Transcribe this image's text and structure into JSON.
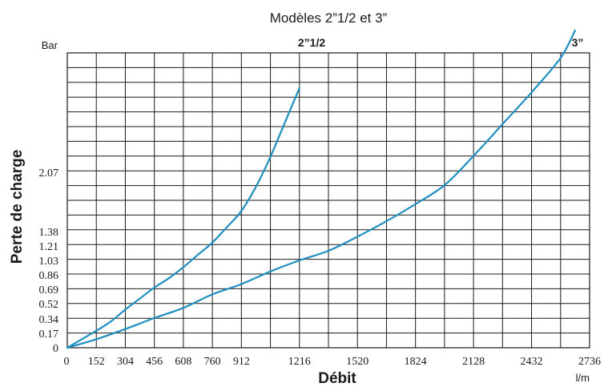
{
  "chart_data": {
    "type": "line",
    "title": "Modèles 2”1/2 et 3”",
    "ylabel": "Perte de charge",
    "xlabel": "Débit",
    "x_unit": "l/m",
    "y_unit": "Bar",
    "xlim": [
      0,
      2736
    ],
    "x_ticks": [
      "0",
      "152",
      "304",
      "456",
      "608",
      "760",
      "912",
      "1216",
      "1520",
      "1824",
      "2128",
      "2432",
      "2736"
    ],
    "y_ticks": [
      "0",
      "0.17",
      "0.34",
      "0.52",
      "0.69",
      "0.86",
      "1.03",
      "1.21",
      "1.38",
      "2.07"
    ],
    "grid": true,
    "series": [
      {
        "name": "2”1/2",
        "color": "#1f8fc0",
        "points": [
          [
            0,
            0
          ],
          [
            76,
            0.1
          ],
          [
            152,
            0.2
          ],
          [
            228,
            0.31
          ],
          [
            304,
            0.45
          ],
          [
            380,
            0.58
          ],
          [
            456,
            0.71
          ],
          [
            532,
            0.82
          ],
          [
            608,
            0.95
          ],
          [
            684,
            1.1
          ],
          [
            760,
            1.25
          ],
          [
            836,
            1.43
          ],
          [
            912,
            1.62
          ],
          [
            988,
            1.9
          ],
          [
            1064,
            2.25
          ],
          [
            1140,
            2.65
          ],
          [
            1216,
            3.05
          ]
        ]
      },
      {
        "name": "3”",
        "color": "#1f8fc0",
        "points": [
          [
            0,
            0
          ],
          [
            152,
            0.1
          ],
          [
            304,
            0.22
          ],
          [
            456,
            0.35
          ],
          [
            608,
            0.47
          ],
          [
            760,
            0.63
          ],
          [
            912,
            0.75
          ],
          [
            1064,
            0.9
          ],
          [
            1216,
            1.03
          ],
          [
            1368,
            1.15
          ],
          [
            1520,
            1.32
          ],
          [
            1672,
            1.5
          ],
          [
            1824,
            1.7
          ],
          [
            1976,
            1.92
          ],
          [
            2128,
            2.26
          ],
          [
            2280,
            2.63
          ],
          [
            2432,
            3.0
          ],
          [
            2584,
            3.4
          ],
          [
            2660,
            3.72
          ]
        ]
      }
    ]
  }
}
